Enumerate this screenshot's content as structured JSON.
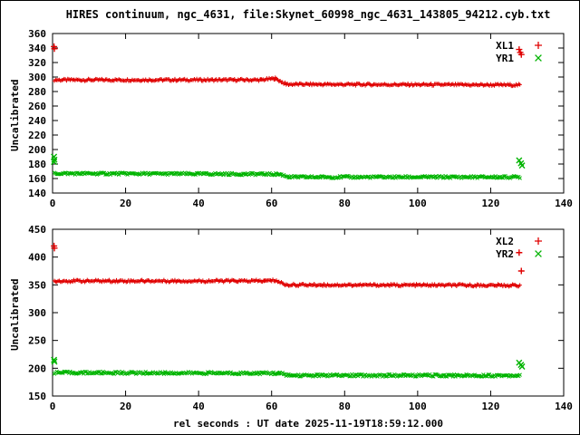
{
  "title": "HIRES continuum, ngc_4631, file:Skynet_60998_ngc_4631_143805_94212.cyb.txt",
  "footer": "rel seconds : UT date 2025-11-19T18:59:12.000",
  "colors": {
    "red": "#e00000",
    "green": "#00b400",
    "axis": "#000000",
    "background": "#ffffff"
  },
  "chart_data": [
    {
      "type": "scatter",
      "title": "",
      "xlabel": "",
      "ylabel": "Uncalibrated",
      "xlim": [
        0,
        140
      ],
      "ylim": [
        140,
        360
      ],
      "xticks": [
        0,
        20,
        40,
        60,
        80,
        100,
        120,
        140
      ],
      "yticks": [
        140,
        160,
        180,
        200,
        220,
        240,
        260,
        280,
        300,
        320,
        340,
        360
      ],
      "grid": false,
      "legend_position": "top-right",
      "legend": [
        {
          "label": "XL1",
          "marker": "+",
          "color": "red"
        },
        {
          "label": "YR1",
          "marker": "x",
          "color": "green"
        }
      ],
      "series": [
        {
          "name": "XL1",
          "marker": "+",
          "color": "red",
          "band": [
            {
              "x0": 0.5,
              "x1": 57,
              "y0": 296,
              "y1": 296
            },
            {
              "x0": 57,
              "x1": 61,
              "y0": 296,
              "y1": 298
            },
            {
              "x0": 61,
              "x1": 64,
              "y0": 298,
              "y1": 290
            },
            {
              "x0": 64,
              "x1": 128,
              "y0": 290,
              "y1": 289
            }
          ],
          "outliers": [
            [
              0.4,
              342
            ],
            [
              0.5,
              339
            ],
            [
              127.8,
              338
            ],
            [
              128.4,
              331
            ],
            [
              128.1,
              334
            ]
          ]
        },
        {
          "name": "YR1",
          "marker": "x",
          "color": "green",
          "band": [
            {
              "x0": 0.5,
              "x1": 62,
              "y0": 167,
              "y1": 166
            },
            {
              "x0": 62,
              "x1": 65,
              "y0": 166,
              "y1": 162
            },
            {
              "x0": 65,
              "x1": 128,
              "y0": 162,
              "y1": 162
            }
          ],
          "outliers": [
            [
              0.4,
              190
            ],
            [
              0.5,
              186
            ],
            [
              0.4,
              183
            ],
            [
              127.8,
              185
            ],
            [
              128.3,
              181
            ],
            [
              128.6,
              178
            ]
          ]
        }
      ]
    },
    {
      "type": "scatter",
      "title": "",
      "xlabel": "rel seconds : UT date 2025-11-19T18:59:12.000",
      "ylabel": "Uncalibrated",
      "xlim": [
        0,
        140
      ],
      "ylim": [
        150,
        450
      ],
      "xticks": [
        0,
        20,
        40,
        60,
        80,
        100,
        120,
        140
      ],
      "yticks": [
        150,
        200,
        250,
        300,
        350,
        400,
        450
      ],
      "grid": false,
      "legend_position": "top-right",
      "legend": [
        {
          "label": "XL2",
          "marker": "+",
          "color": "red"
        },
        {
          "label": "YR2",
          "marker": "x",
          "color": "green"
        }
      ],
      "series": [
        {
          "name": "XL2",
          "marker": "+",
          "color": "red",
          "band": [
            {
              "x0": 0.5,
              "x1": 58,
              "y0": 357,
              "y1": 357
            },
            {
              "x0": 58,
              "x1": 61,
              "y0": 357,
              "y1": 358
            },
            {
              "x0": 61,
              "x1": 64,
              "y0": 358,
              "y1": 350
            },
            {
              "x0": 64,
              "x1": 128,
              "y0": 350,
              "y1": 349
            }
          ],
          "outliers": [
            [
              0.4,
              420
            ],
            [
              0.5,
              416
            ],
            [
              127.8,
              408
            ],
            [
              128.4,
              375
            ]
          ]
        },
        {
          "name": "YR2",
          "marker": "x",
          "color": "green",
          "band": [
            {
              "x0": 0.5,
              "x1": 62,
              "y0": 192,
              "y1": 191
            },
            {
              "x0": 62,
              "x1": 65,
              "y0": 191,
              "y1": 187
            },
            {
              "x0": 65,
              "x1": 128,
              "y0": 187,
              "y1": 187
            }
          ],
          "outliers": [
            [
              0.4,
              215
            ],
            [
              0.5,
              212
            ],
            [
              127.8,
              210
            ],
            [
              128.3,
              206
            ],
            [
              128.6,
              203
            ]
          ]
        }
      ]
    }
  ]
}
